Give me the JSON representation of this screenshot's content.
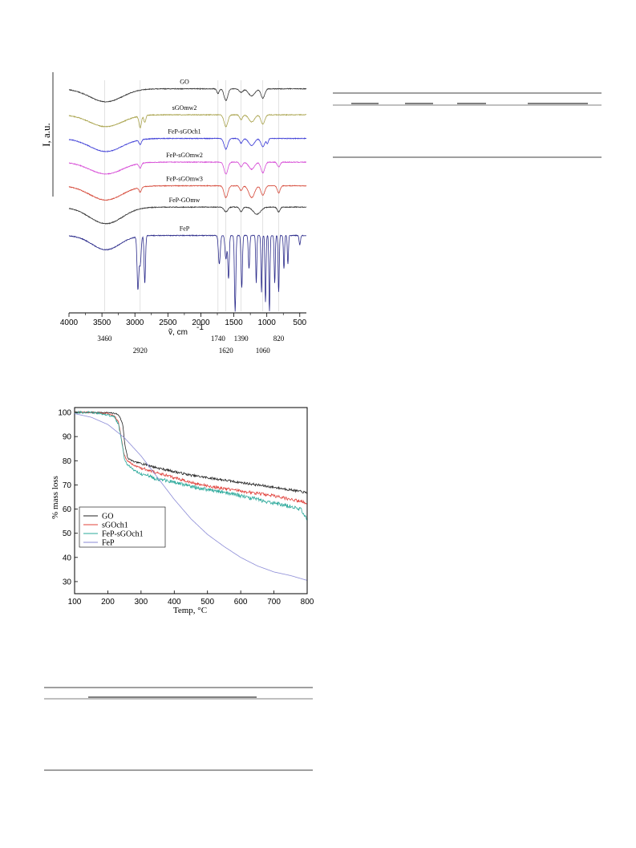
{
  "chart_data": [
    {
      "type": "line",
      "ylabel": "I, a.u.",
      "xlabel": "ṽ, cm",
      "xlabel_sup": "-1",
      "xlim": [
        4000,
        400
      ],
      "xticks": [
        4000,
        3500,
        3000,
        2500,
        2000,
        1500,
        1000,
        500
      ],
      "xtick_labels": [
        "4000",
        "3500",
        "3000",
        "2500",
        "2000",
        "1500",
        "1000",
        "500"
      ],
      "grid": "vertical reference lines at marked bands",
      "marked_bands": [
        3460,
        2920,
        1740,
        1620,
        1390,
        1060,
        820
      ],
      "marked_band_labels": [
        "3460",
        "2920",
        "1740",
        "1620",
        "1390",
        "1060",
        "820"
      ],
      "series": [
        {
          "name": "GO",
          "color": "#333333",
          "baseline": 0.93,
          "bands": [
            [
              3440,
              350,
              0.055
            ],
            [
              1740,
              25,
              0.02
            ],
            [
              1620,
              40,
              0.05
            ],
            [
              1390,
              40,
              0.015
            ],
            [
              1230,
              70,
              0.03
            ],
            [
              1060,
              40,
              0.04
            ]
          ]
        },
        {
          "name": "sGOmw2",
          "color": "#a8a24a",
          "baseline": 0.82,
          "bands": [
            [
              3440,
              350,
              0.05
            ],
            [
              2920,
              25,
              0.05
            ],
            [
              2850,
              20,
              0.03
            ],
            [
              1620,
              40,
              0.05
            ],
            [
              1390,
              30,
              0.02
            ],
            [
              1230,
              60,
              0.03
            ],
            [
              1060,
              40,
              0.04
            ]
          ]
        },
        {
          "name": "FeP-sGOch1",
          "color": "#3b3bd6",
          "baseline": 0.72,
          "bands": [
            [
              3440,
              350,
              0.055
            ],
            [
              2920,
              25,
              0.02
            ],
            [
              1620,
              40,
              0.045
            ],
            [
              1390,
              30,
              0.02
            ],
            [
              1230,
              60,
              0.03
            ],
            [
              1060,
              40,
              0.035
            ],
            [
              990,
              20,
              0.02
            ]
          ]
        },
        {
          "name": "FeP-sGOmw2",
          "color": "#d64ad6",
          "baseline": 0.62,
          "bands": [
            [
              3440,
              350,
              0.05
            ],
            [
              2920,
              25,
              0.02
            ],
            [
              1620,
              40,
              0.05
            ],
            [
              1390,
              30,
              0.02
            ],
            [
              1230,
              60,
              0.03
            ],
            [
              1060,
              40,
              0.045
            ],
            [
              820,
              30,
              0.02
            ]
          ]
        },
        {
          "name": "FeP-sGOmw3",
          "color": "#d64a3a",
          "baseline": 0.52,
          "bands": [
            [
              3440,
              350,
              0.06
            ],
            [
              2920,
              25,
              0.02
            ],
            [
              1620,
              40,
              0.05
            ],
            [
              1390,
              30,
              0.02
            ],
            [
              1230,
              60,
              0.05
            ],
            [
              1060,
              40,
              0.04
            ],
            [
              820,
              30,
              0.03
            ]
          ]
        },
        {
          "name": "FeP-GOmw",
          "color": "#333333",
          "baseline": 0.43,
          "bands": [
            [
              3440,
              350,
              0.07
            ],
            [
              1620,
              40,
              0.02
            ],
            [
              1390,
              30,
              0.02
            ],
            [
              1150,
              80,
              0.03
            ],
            [
              820,
              30,
              0.02
            ]
          ]
        },
        {
          "name": "FeP",
          "color": "#2a2a8a",
          "baseline": 0.31,
          "bands": [
            [
              3440,
              300,
              0.06
            ],
            [
              2955,
              18,
              0.22
            ],
            [
              2920,
              20,
              0.12
            ],
            [
              2850,
              15,
              0.2
            ],
            [
              1720,
              20,
              0.12
            ],
            [
              1620,
              20,
              0.1
            ],
            [
              1580,
              15,
              0.18
            ],
            [
              1480,
              15,
              0.32
            ],
            [
              1380,
              15,
              0.22
            ],
            [
              1270,
              15,
              0.14
            ],
            [
              1160,
              12,
              0.2
            ],
            [
              1080,
              12,
              0.24
            ],
            [
              1020,
              12,
              0.28
            ],
            [
              960,
              12,
              0.32
            ],
            [
              880,
              12,
              0.2
            ],
            [
              820,
              12,
              0.24
            ],
            [
              740,
              12,
              0.14
            ],
            [
              680,
              12,
              0.12
            ],
            [
              500,
              15,
              0.04
            ]
          ]
        }
      ]
    },
    {
      "type": "line",
      "xlabel": "Temp, °C",
      "ylabel": "% mass loss",
      "xlim": [
        100,
        800
      ],
      "ylim": [
        25,
        102
      ],
      "xticks": [
        100,
        200,
        300,
        400,
        500,
        600,
        700,
        800
      ],
      "yticks": [
        30,
        40,
        50,
        60,
        70,
        80,
        90,
        100
      ],
      "legend": "bottom-left",
      "series": [
        {
          "name": "GO",
          "color": "#222222",
          "x": [
            100,
            150,
            200,
            225,
            235,
            245,
            252,
            260,
            280,
            300,
            350,
            400,
            450,
            500,
            550,
            600,
            650,
            700,
            750,
            790,
            800
          ],
          "y": [
            100,
            100,
            99.9,
            99.5,
            98.5,
            95,
            86,
            81,
            79.5,
            79,
            77,
            75.5,
            74,
            73,
            72,
            71,
            70,
            69,
            68,
            67,
            66.5
          ],
          "noise": 0.5
        },
        {
          "name": "sGOch1",
          "color": "#e0403a",
          "x": [
            100,
            150,
            200,
            220,
            232,
            240,
            248,
            258,
            280,
            300,
            350,
            400,
            450,
            500,
            550,
            600,
            650,
            700,
            750,
            790,
            800
          ],
          "y": [
            100,
            100,
            99.5,
            98.5,
            96,
            90,
            83,
            80,
            78,
            77,
            75,
            73,
            71,
            69.5,
            68.5,
            67.5,
            66.5,
            65.5,
            64,
            63,
            62
          ],
          "noise": 0.6
        },
        {
          "name": "FeP-sGOch1",
          "color": "#2aa89a",
          "x": [
            100,
            150,
            200,
            220,
            232,
            242,
            250,
            258,
            280,
            300,
            350,
            400,
            450,
            500,
            550,
            600,
            650,
            700,
            750,
            780,
            790,
            795,
            800
          ],
          "y": [
            100,
            100,
            99,
            98,
            95,
            88,
            81,
            78.5,
            76,
            74.5,
            72.5,
            71,
            69.5,
            68,
            67,
            65.5,
            64,
            62.5,
            61,
            60,
            58,
            57,
            55
          ],
          "noise": 0.8
        },
        {
          "name": "FeP",
          "color": "#8a8ad6",
          "x": [
            100,
            150,
            200,
            250,
            300,
            350,
            400,
            450,
            500,
            550,
            600,
            650,
            700,
            750,
            800
          ],
          "y": [
            99.5,
            98,
            95,
            89.5,
            82,
            73,
            64,
            56,
            49.5,
            44.5,
            40,
            36.5,
            34,
            32.5,
            30.5
          ],
          "noise": 0
        }
      ]
    }
  ]
}
